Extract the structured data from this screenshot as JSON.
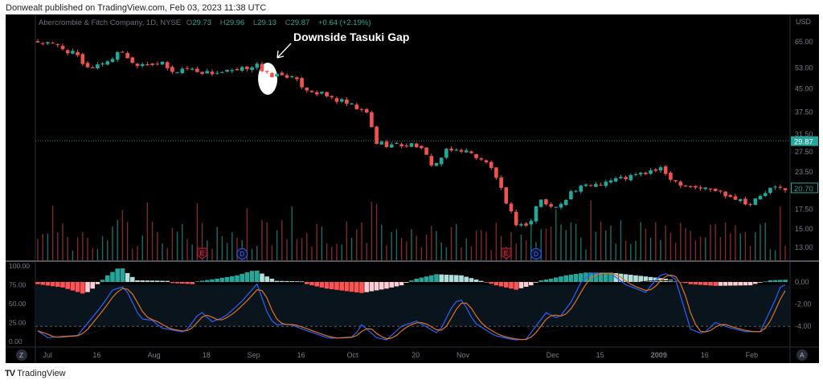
{
  "publisher": "Donwealt published on TradingView.com, Feb 03, 2023 11:38 UTC",
  "brand": "TradingView",
  "legend": {
    "symbol": "Abercrombie & Fitch Company, 1D, NYSE",
    "o_label": "O",
    "o": "29.73",
    "h_label": "H",
    "h": "29.96",
    "l_label": "L",
    "l": "29.13",
    "c_label": "C",
    "c": "29.87",
    "change": "+0.64 (+2.19%)"
  },
  "buttons": {
    "zoom": "Z",
    "auto": "A"
  },
  "colors": {
    "up": "#26a69a",
    "down": "#ef5350",
    "k_line": "#2962ff",
    "d_line": "#e0731c",
    "background": "#000000",
    "band": "#0a141d"
  },
  "chart_data": {
    "type": "candlestick",
    "title": "Abercrombie & Fitch Company, 1D, NYSE",
    "currency": "USD",
    "scale": "log",
    "price_ticks": [
      "65.00",
      "53.00",
      "45.00",
      "37.50",
      "31.50",
      "27.50",
      "23.50",
      "17.50",
      "15.00",
      "13.00"
    ],
    "price_tick_values": [
      65,
      53,
      45,
      37.5,
      31.5,
      27.5,
      23.5,
      17.5,
      15,
      13
    ],
    "last_price_label": "29.87",
    "last_price": 29.87,
    "last_bar_label": "20.70",
    "last_bar_price": 20.7,
    "bars": 151,
    "close_path": [
      [
        0,
        65
      ],
      [
        4,
        63
      ],
      [
        8,
        58
      ],
      [
        9,
        54
      ],
      [
        11,
        53.5
      ],
      [
        14,
        56
      ],
      [
        16,
        59
      ],
      [
        17.4,
        61
      ],
      [
        18.5,
        55
      ],
      [
        24.7,
        55
      ],
      [
        27,
        51
      ],
      [
        29.5,
        53
      ],
      [
        34,
        51
      ],
      [
        40,
        51.5
      ],
      [
        43,
        54
      ],
      [
        44,
        55
      ],
      [
        45,
        51
      ],
      [
        46.5,
        50
      ],
      [
        50,
        50
      ],
      [
        54,
        45
      ],
      [
        57,
        43
      ],
      [
        62,
        40
      ],
      [
        66,
        37
      ],
      [
        68,
        29.5
      ],
      [
        71,
        29
      ],
      [
        76,
        29
      ],
      [
        79.5,
        24.5
      ],
      [
        82,
        27.5
      ],
      [
        85,
        28
      ],
      [
        89,
        26
      ],
      [
        91.6,
        23.5
      ],
      [
        94,
        18
      ],
      [
        96.5,
        15.2
      ],
      [
        99,
        16
      ],
      [
        100.5,
        19
      ],
      [
        103.7,
        17.5
      ],
      [
        107,
        20
      ],
      [
        110,
        21
      ],
      [
        115,
        22
      ],
      [
        120,
        22.8
      ],
      [
        124.7,
        24
      ],
      [
        128,
        21.8
      ],
      [
        131,
        21
      ],
      [
        136,
        20.3
      ],
      [
        139,
        19.5
      ],
      [
        143,
        18.3
      ],
      [
        147,
        20.5
      ],
      [
        150,
        20.7
      ]
    ],
    "time_ticks": [
      [
        "Jul",
        2
      ],
      [
        "16",
        12
      ],
      [
        "Aug",
        23
      ],
      [
        "18",
        34
      ],
      [
        "Sep",
        43
      ],
      [
        "16",
        53
      ],
      [
        "Oct",
        63
      ],
      [
        "20",
        76
      ],
      [
        "Nov",
        85
      ],
      [
        "Dec",
        103
      ],
      [
        "15",
        113
      ],
      [
        "2009",
        124
      ],
      [
        "16",
        134
      ],
      [
        "Feb",
        143
      ]
    ],
    "events": [
      {
        "label": "E",
        "bar": 33
      },
      {
        "label": "D",
        "bar": 41
      },
      {
        "label": "E",
        "bar": 94
      },
      {
        "label": "D",
        "bar": 100
      }
    ],
    "annotation": {
      "text": "Downside Tasuki Gap",
      "bars": [
        44,
        47
      ]
    },
    "oscillator": {
      "left_ticks": [
        "100.00",
        "75.00",
        "50.00",
        "25.00",
        "0.00"
      ],
      "left_tick_values": [
        100,
        75,
        50,
        25,
        0
      ],
      "right_ticks": [
        "0.00",
        "-2.00",
        "-4.00"
      ],
      "right_tick_values": [
        0,
        -2,
        -4
      ],
      "overbought_band": [
        20,
        75
      ],
      "k_path": [
        [
          0,
          14
        ],
        [
          2,
          5
        ],
        [
          8,
          8
        ],
        [
          12.6,
          45
        ],
        [
          15,
          68
        ],
        [
          17.4,
          73
        ],
        [
          20.6,
          30
        ],
        [
          23,
          28
        ],
        [
          24.7,
          18
        ],
        [
          29.5,
          12
        ],
        [
          32.7,
          40
        ],
        [
          35,
          26
        ],
        [
          37.6,
          33
        ],
        [
          40.8,
          52
        ],
        [
          44,
          76
        ],
        [
          46.5,
          30
        ],
        [
          48,
          22
        ],
        [
          50.5,
          23
        ],
        [
          53.7,
          15
        ],
        [
          58.5,
          4
        ],
        [
          63.4,
          6
        ],
        [
          65,
          22
        ],
        [
          68,
          5
        ],
        [
          70,
          2
        ],
        [
          73,
          20
        ],
        [
          76,
          27
        ],
        [
          80.4,
          10
        ],
        [
          83.6,
          52
        ],
        [
          85.2,
          55
        ],
        [
          87.6,
          25
        ],
        [
          91.6,
          8
        ],
        [
          95.6,
          2
        ],
        [
          98,
          3
        ],
        [
          102,
          38
        ],
        [
          104.5,
          30
        ],
        [
          107,
          52
        ],
        [
          109,
          78
        ],
        [
          111,
          90
        ],
        [
          115,
          90
        ],
        [
          118,
          75
        ],
        [
          122,
          65
        ],
        [
          124.7,
          87
        ],
        [
          126.3,
          90
        ],
        [
          128,
          82
        ],
        [
          131,
          16
        ],
        [
          133.5,
          10
        ],
        [
          136,
          25
        ],
        [
          138.4,
          19
        ],
        [
          142,
          13
        ],
        [
          145,
          13
        ],
        [
          148,
          55
        ],
        [
          149.5,
          80
        ],
        [
          150,
          75
        ]
      ],
      "hist_path": [
        [
          0,
          -0.2
        ],
        [
          5,
          -0.5
        ],
        [
          9.4,
          -1.1
        ],
        [
          11,
          -0.6
        ],
        [
          12.5,
          0
        ],
        [
          14,
          0.6
        ],
        [
          16.6,
          1.4
        ],
        [
          18.5,
          0.6
        ],
        [
          20,
          0.15
        ],
        [
          26,
          0.1
        ],
        [
          27,
          -0.1
        ],
        [
          31,
          -0.2
        ],
        [
          32,
          0.05
        ],
        [
          36,
          0.3
        ],
        [
          40,
          0.6
        ],
        [
          43.7,
          1.1
        ],
        [
          46,
          0.5
        ],
        [
          48,
          0.1
        ],
        [
          53,
          0.05
        ],
        [
          54,
          -0.2
        ],
        [
          58,
          -0.6
        ],
        [
          65,
          -1.0
        ],
        [
          70,
          -0.6
        ],
        [
          73,
          -0.3
        ],
        [
          74.5,
          0.05
        ],
        [
          76,
          0.3
        ],
        [
          80,
          0.7
        ],
        [
          85,
          0.6
        ],
        [
          89,
          0.1
        ],
        [
          92,
          -0.3
        ],
        [
          96,
          -0.7
        ],
        [
          99,
          -0.3
        ],
        [
          100.5,
          0.1
        ],
        [
          103,
          0.3
        ],
        [
          106,
          0.6
        ],
        [
          110,
          0.85
        ],
        [
          115,
          0.85
        ],
        [
          120,
          0.6
        ],
        [
          126,
          0.3
        ],
        [
          128,
          0.1
        ],
        [
          131,
          -0.2
        ],
        [
          136,
          -0.35
        ],
        [
          143,
          -0.3
        ],
        [
          145,
          -0.05
        ],
        [
          147,
          0.15
        ],
        [
          150,
          0.2
        ]
      ]
    }
  }
}
